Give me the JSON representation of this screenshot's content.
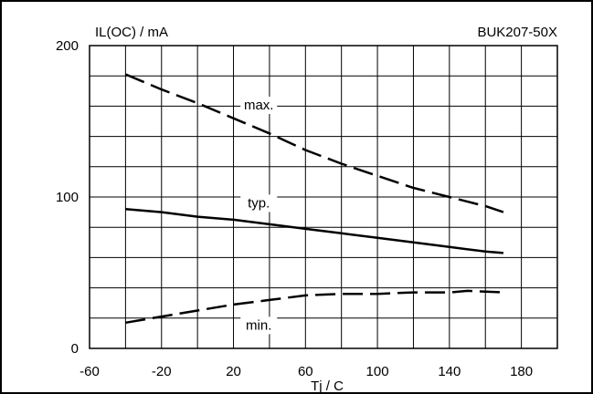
{
  "chart_data": {
    "type": "line",
    "ylabel": "IL(OC) / mA",
    "xlabel": "Tj / C",
    "part_number": "BUK207-50X",
    "xlim": [
      -60,
      200
    ],
    "ylim": [
      0,
      200
    ],
    "x_ticks": [
      -60,
      -20,
      20,
      60,
      100,
      140,
      180
    ],
    "y_ticks": [
      0,
      100,
      200
    ],
    "grid": true,
    "series": [
      {
        "name": "max.",
        "style": "dashed",
        "x": [
          -40,
          -20,
          0,
          20,
          40,
          60,
          80,
          100,
          120,
          140,
          160,
          170
        ],
        "y": [
          181,
          171,
          162,
          152,
          142,
          131,
          122,
          114,
          106,
          100,
          94,
          90
        ]
      },
      {
        "name": "typ.",
        "style": "solid",
        "x": [
          -40,
          -20,
          0,
          20,
          40,
          60,
          80,
          100,
          120,
          140,
          160,
          170
        ],
        "y": [
          92,
          90,
          87,
          85,
          82,
          79,
          76,
          73,
          70,
          67,
          64,
          63
        ]
      },
      {
        "name": "min.",
        "style": "dashed",
        "x": [
          -40,
          -20,
          0,
          20,
          40,
          60,
          80,
          100,
          120,
          140,
          150,
          170
        ],
        "y": [
          17,
          21,
          25,
          29,
          32,
          35,
          36,
          36,
          37,
          37,
          38,
          37
        ]
      }
    ]
  }
}
